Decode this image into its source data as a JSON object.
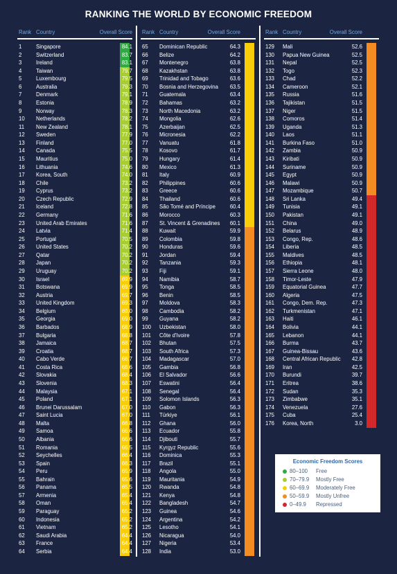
{
  "title": "RANKING THE WORLD BY ECONOMIC FREEDOM",
  "headers": {
    "rank": "Rank",
    "country": "Country",
    "score": "Overall Score"
  },
  "colors": {
    "free": "#31a942",
    "mostly_free": "#a7cd33",
    "moderately_free": "#f9cd0a",
    "mostly_unfree": "#f38d23",
    "repressed": "#d2282a"
  },
  "legend": {
    "title": "Economic Freedom Scores",
    "items": [
      {
        "range": "80–100",
        "label": "Free",
        "color": "#31a942"
      },
      {
        "range": "70–79.9",
        "label": "Mostly Free",
        "color": "#a7cd33"
      },
      {
        "range": "60–69.9",
        "label": "Moderately Free",
        "color": "#f9cd0a"
      },
      {
        "range": "50–59.9",
        "label": "Mostly Unfree",
        "color": "#f38d23"
      },
      {
        "range": "0–49.9",
        "label": "Repressed",
        "color": "#d2282a"
      }
    ]
  },
  "chart_data": {
    "type": "table",
    "columns": [
      "Rank",
      "Country",
      "Overall Score"
    ],
    "rows": [
      [
        1,
        "Singapore",
        "84.1"
      ],
      [
        2,
        "Switzerland",
        "83.7"
      ],
      [
        3,
        "Ireland",
        "83.1"
      ],
      [
        4,
        "Taiwan",
        "79.7"
      ],
      [
        5,
        "Luxembourg",
        "79.5"
      ],
      [
        6,
        "Australia",
        "79.3"
      ],
      [
        7,
        "Denmark",
        "79.1"
      ],
      [
        8,
        "Estonia",
        "78.9"
      ],
      [
        9,
        "Norway",
        "78.3"
      ],
      [
        10,
        "Netherlands",
        "78.2"
      ],
      [
        11,
        "New Zealand",
        "78.1"
      ],
      [
        12,
        "Sweden",
        "77.9"
      ],
      [
        13,
        "Finland",
        "77.0"
      ],
      [
        14,
        "Canada",
        "75.5"
      ],
      [
        15,
        "Mauritius",
        "75.0"
      ],
      [
        16,
        "Lithuania",
        "74.6"
      ],
      [
        17,
        "Korea, South",
        "74.0"
      ],
      [
        18,
        "Chile",
        "73.2"
      ],
      [
        19,
        "Cyprus",
        "73.2"
      ],
      [
        20,
        "Czech Republic",
        "72.9"
      ],
      [
        21,
        "Iceland",
        "72.8"
      ],
      [
        22,
        "Germany",
        "71.6"
      ],
      [
        23,
        "United Arab Emirates",
        "71.6"
      ],
      [
        24,
        "Latvia",
        "71.4"
      ],
      [
        25,
        "Portugal",
        "70.5"
      ],
      [
        26,
        "United States",
        "70.2"
      ],
      [
        27,
        "Qatar",
        "70.2"
      ],
      [
        28,
        "Japan",
        "70.2"
      ],
      [
        29,
        "Uruguay",
        "70.2"
      ],
      [
        30,
        "Israel",
        "69.9"
      ],
      [
        31,
        "Botswana",
        "69.9"
      ],
      [
        32,
        "Austria",
        "69.7"
      ],
      [
        33,
        "United Kingdom",
        "69.3"
      ],
      [
        34,
        "Belgium",
        "69.0"
      ],
      [
        35,
        "Georgia",
        "69.0"
      ],
      [
        36,
        "Barbados",
        "68.9"
      ],
      [
        37,
        "Bulgaria",
        "68.8"
      ],
      [
        38,
        "Jamaica",
        "68.7"
      ],
      [
        39,
        "Croatia",
        "68.7"
      ],
      [
        40,
        "Cabo Verde",
        "68.7"
      ],
      [
        41,
        "Costa Rica",
        "68.6"
      ],
      [
        42,
        "Slovakia",
        "68.4"
      ],
      [
        43,
        "Slovenia",
        "68.3"
      ],
      [
        44,
        "Malaysia",
        "67.1"
      ],
      [
        45,
        "Poland",
        "67.1"
      ],
      [
        46,
        "Brunei Darussalam",
        "67.0"
      ],
      [
        47,
        "Saint Lucia",
        "67.0"
      ],
      [
        48,
        "Malta",
        "66.8"
      ],
      [
        49,
        "Samoa",
        "66.6"
      ],
      [
        50,
        "Albania",
        "66.6"
      ],
      [
        51,
        "Romania",
        "66.5"
      ],
      [
        52,
        "Seychelles",
        "66.4"
      ],
      [
        53,
        "Spain",
        "66.3"
      ],
      [
        54,
        "Peru",
        "65.9"
      ],
      [
        55,
        "Bahrain",
        "65.6"
      ],
      [
        56,
        "Panama",
        "65.5"
      ],
      [
        57,
        "Armenia",
        "65.4"
      ],
      [
        58,
        "Oman",
        "65.4"
      ],
      [
        59,
        "Paraguay",
        "65.2"
      ],
      [
        60,
        "Indonesia",
        "65.2"
      ],
      [
        61,
        "Vietnam",
        "65.2"
      ],
      [
        62,
        "Saudi Arabia",
        "64.4"
      ],
      [
        63,
        "France",
        "64.4"
      ],
      [
        64,
        "Serbia",
        "64.4"
      ],
      [
        65,
        "Dominican Republic",
        "64.3"
      ],
      [
        66,
        "Belize",
        "64.2"
      ],
      [
        67,
        "Montenegro",
        "63.8"
      ],
      [
        68,
        "Kazakhstan",
        "63.8"
      ],
      [
        69,
        "Trinidad and Tobago",
        "63.6"
      ],
      [
        70,
        "Bosnia and Herzegovina",
        "63.5"
      ],
      [
        71,
        "Guatemala",
        "63.4"
      ],
      [
        72,
        "Bahamas",
        "63.2"
      ],
      [
        73,
        "North Macedonia",
        "63.2"
      ],
      [
        74,
        "Mongolia",
        "62.6"
      ],
      [
        75,
        "Azerbaijan",
        "62.5"
      ],
      [
        76,
        "Micronesia",
        "62.2"
      ],
      [
        77,
        "Vanuatu",
        "61.8"
      ],
      [
        78,
        "Kosovo",
        "61.7"
      ],
      [
        79,
        "Hungary",
        "61.4"
      ],
      [
        80,
        "Mexico",
        "61.3"
      ],
      [
        81,
        "Italy",
        "60.9"
      ],
      [
        82,
        "Philippines",
        "60.6"
      ],
      [
        83,
        "Greece",
        "60.6"
      ],
      [
        84,
        "Thailand",
        "60.6"
      ],
      [
        85,
        "São Tomé and Príncipe",
        "60.4"
      ],
      [
        86,
        "Morocco",
        "60.3"
      ],
      [
        87,
        "St. Vincent & Grenadines",
        "60.1"
      ],
      [
        88,
        "Kuwait",
        "59.9"
      ],
      [
        89,
        "Colombia",
        "59.8"
      ],
      [
        90,
        "Honduras",
        "59.6"
      ],
      [
        91,
        "Jordan",
        "59.4"
      ],
      [
        92,
        "Tanzania",
        "59.3"
      ],
      [
        93,
        "Fiji",
        "59.1"
      ],
      [
        94,
        "Namibia",
        "58.7"
      ],
      [
        95,
        "Tonga",
        "58.5"
      ],
      [
        96,
        "Benin",
        "58.5"
      ],
      [
        97,
        "Moldova",
        "58.3"
      ],
      [
        98,
        "Cambodia",
        "58.2"
      ],
      [
        99,
        "Guyana",
        "58.2"
      ],
      [
        100,
        "Uzbekistan",
        "58.0"
      ],
      [
        101,
        "Côte d'Ivoire",
        "57.8"
      ],
      [
        102,
        "Bhutan",
        "57.5"
      ],
      [
        103,
        "South Africa",
        "57.3"
      ],
      [
        104,
        "Madagascar",
        "57.0"
      ],
      [
        105,
        "Gambia",
        "56.8"
      ],
      [
        106,
        "El Salvador",
        "56.6"
      ],
      [
        107,
        "Eswatini",
        "56.4"
      ],
      [
        108,
        "Senegal",
        "56.4"
      ],
      [
        109,
        "Solomon Islands",
        "56.3"
      ],
      [
        110,
        "Gabon",
        "56.3"
      ],
      [
        111,
        "Türkiye",
        "56.1"
      ],
      [
        112,
        "Ghana",
        "56.0"
      ],
      [
        113,
        "Ecuador",
        "55.8"
      ],
      [
        114,
        "Djibouti",
        "55.7"
      ],
      [
        115,
        "Kyrgyz Republic",
        "55.6"
      ],
      [
        116,
        "Dominica",
        "55.3"
      ],
      [
        117,
        "Brazil",
        "55.1"
      ],
      [
        118,
        "Angola",
        "55.0"
      ],
      [
        119,
        "Mauritania",
        "54.9"
      ],
      [
        120,
        "Rwanda",
        "54.8"
      ],
      [
        121,
        "Kenya",
        "54.8"
      ],
      [
        122,
        "Bangladesh",
        "54.7"
      ],
      [
        123,
        "Guinea",
        "54.6"
      ],
      [
        124,
        "Argentina",
        "54.2"
      ],
      [
        125,
        "Lesotho",
        "54.1"
      ],
      [
        126,
        "Nicaragua",
        "54.0"
      ],
      [
        127,
        "Nigeria",
        "53.4"
      ],
      [
        128,
        "India",
        "53.0"
      ],
      [
        129,
        "Mali",
        "52.6"
      ],
      [
        130,
        "Papua New Guinea",
        "52.5"
      ],
      [
        131,
        "Nepal",
        "52.5"
      ],
      [
        132,
        "Togo",
        "52.3"
      ],
      [
        133,
        "Chad",
        "52.2"
      ],
      [
        134,
        "Cameroon",
        "52.1"
      ],
      [
        135,
        "Russia",
        "51.6"
      ],
      [
        136,
        "Tajikistan",
        "51.5"
      ],
      [
        137,
        "Niger",
        "51.5"
      ],
      [
        138,
        "Comoros",
        "51.4"
      ],
      [
        139,
        "Uganda",
        "51.3"
      ],
      [
        140,
        "Laos",
        "51.1"
      ],
      [
        141,
        "Burkina Faso",
        "51.0"
      ],
      [
        142,
        "Zambia",
        "50.9"
      ],
      [
        143,
        "Kiribati",
        "50.9"
      ],
      [
        144,
        "Suriname",
        "50.9"
      ],
      [
        145,
        "Egypt",
        "50.9"
      ],
      [
        146,
        "Malawi",
        "50.9"
      ],
      [
        147,
        "Mozambique",
        "50.7"
      ],
      [
        148,
        "Sri Lanka",
        "49.4"
      ],
      [
        149,
        "Tunisia",
        "49.1"
      ],
      [
        150,
        "Pakistan",
        "49.1"
      ],
      [
        151,
        "China",
        "49.0"
      ],
      [
        152,
        "Belarus",
        "48.9"
      ],
      [
        153,
        "Congo, Rep.",
        "48.6"
      ],
      [
        154,
        "Liberia",
        "48.5"
      ],
      [
        155,
        "Maldives",
        "48.5"
      ],
      [
        156,
        "Ethiopia",
        "48.1"
      ],
      [
        157,
        "Sierra Leone",
        "48.0"
      ],
      [
        158,
        "Timor-Leste",
        "47.9"
      ],
      [
        159,
        "Equatorial Guinea",
        "47.7"
      ],
      [
        160,
        "Algeria",
        "47.5"
      ],
      [
        161,
        "Congo, Dem. Rep.",
        "47.3"
      ],
      [
        162,
        "Turkmenistan",
        "47.1"
      ],
      [
        163,
        "Haiti",
        "46.1"
      ],
      [
        164,
        "Bolivia",
        "44.1"
      ],
      [
        165,
        "Lebanon",
        "44.1"
      ],
      [
        166,
        "Burma",
        "43.7"
      ],
      [
        167,
        "Guinea-Bissau",
        "43.6"
      ],
      [
        168,
        "Central African Republic",
        "42.8"
      ],
      [
        169,
        "Iran",
        "42.5"
      ],
      [
        170,
        "Burundi",
        "39.7"
      ],
      [
        171,
        "Eritrea",
        "38.6"
      ],
      [
        172,
        "Sudan",
        "35.3"
      ],
      [
        173,
        "Zimbabwe",
        "35.1"
      ],
      [
        174,
        "Venezuela",
        "27.6"
      ],
      [
        175,
        "Cuba",
        "25.4"
      ],
      [
        176,
        "Korea, North",
        "3.0"
      ]
    ]
  }
}
